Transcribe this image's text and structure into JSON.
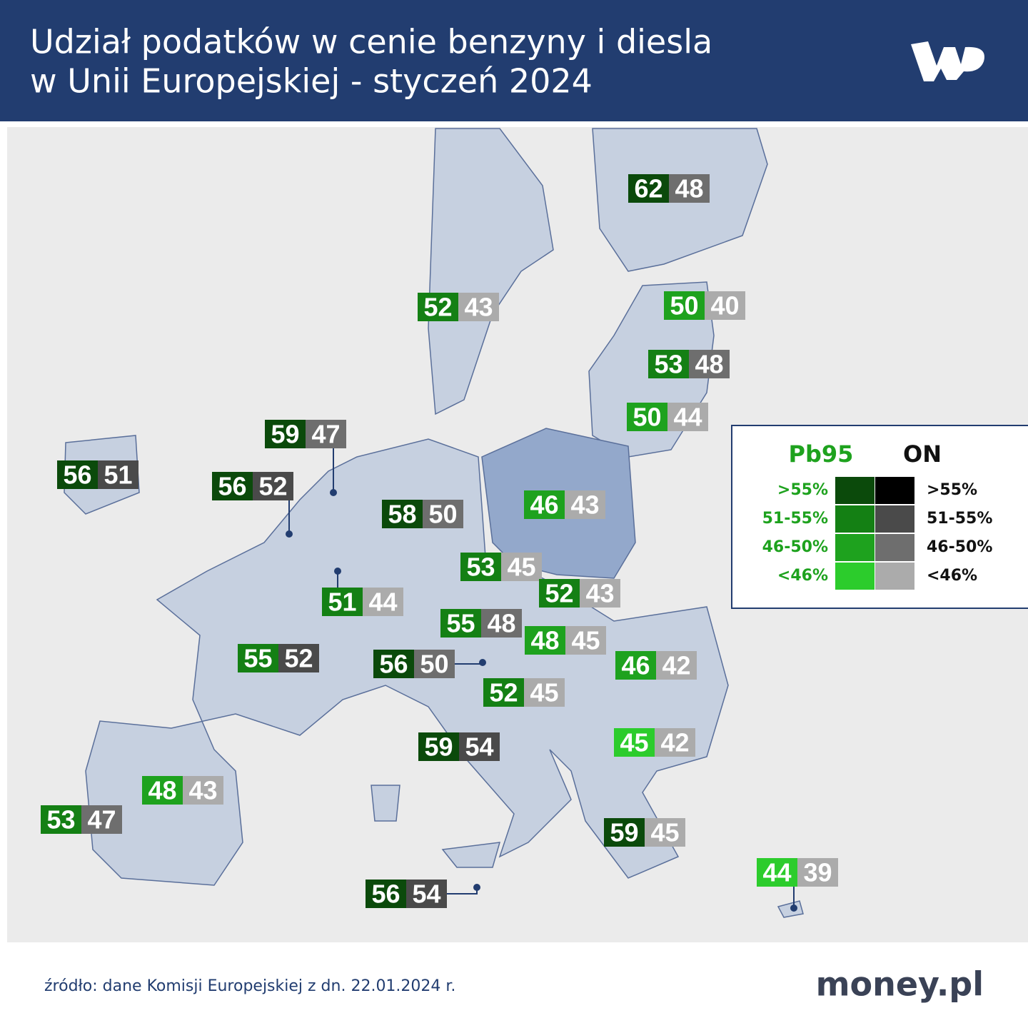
{
  "header": {
    "title_lines": [
      "Udział podatków w cenie benzyny i diesla",
      "w Unii Europejskiej - styczeń 2024"
    ]
  },
  "map": {
    "labels": [
      {
        "pb95": 62,
        "pb95_color": "#0b4a0b",
        "on": 48,
        "on_color": "#6e6e6e"
      },
      {
        "pb95": 52,
        "pb95_color": "#148014",
        "on": 43,
        "on_color": "#ababab"
      },
      {
        "pb95": 50,
        "pb95_color": "#1ea21e",
        "on": 40,
        "on_color": "#ababab"
      },
      {
        "pb95": 53,
        "pb95_color": "#148014",
        "on": 48,
        "on_color": "#6e6e6e"
      },
      {
        "pb95": 50,
        "pb95_color": "#1ea21e",
        "on": 44,
        "on_color": "#ababab"
      },
      {
        "pb95": 59,
        "pb95_color": "#0b4a0b",
        "on": 47,
        "on_color": "#6e6e6e"
      },
      {
        "pb95": 56,
        "pb95_color": "#0b4a0b",
        "on": 51,
        "on_color": "#4a4a4a"
      },
      {
        "pb95": 56,
        "pb95_color": "#0b4a0b",
        "on": 52,
        "on_color": "#4a4a4a"
      },
      {
        "pb95": 58,
        "pb95_color": "#0b4a0b",
        "on": 50,
        "on_color": "#6e6e6e"
      },
      {
        "pb95": 46,
        "pb95_color": "#1ea21e",
        "on": 43,
        "on_color": "#ababab"
      },
      {
        "pb95": 53,
        "pb95_color": "#148014",
        "on": 45,
        "on_color": "#ababab"
      },
      {
        "pb95": 51,
        "pb95_color": "#148014",
        "on": 44,
        "on_color": "#ababab"
      },
      {
        "pb95": 52,
        "pb95_color": "#148014",
        "on": 43,
        "on_color": "#ababab"
      },
      {
        "pb95": 55,
        "pb95_color": "#148014",
        "on": 48,
        "on_color": "#6e6e6e"
      },
      {
        "pb95": 48,
        "pb95_color": "#1ea21e",
        "on": 45,
        "on_color": "#ababab"
      },
      {
        "pb95": 55,
        "pb95_color": "#148014",
        "on": 52,
        "on_color": "#4a4a4a"
      },
      {
        "pb95": 56,
        "pb95_color": "#0b4a0b",
        "on": 50,
        "on_color": "#6e6e6e"
      },
      {
        "pb95": 46,
        "pb95_color": "#1ea21e",
        "on": 42,
        "on_color": "#ababab"
      },
      {
        "pb95": 52,
        "pb95_color": "#148014",
        "on": 45,
        "on_color": "#ababab"
      },
      {
        "pb95": 45,
        "pb95_color": "#2ccc2c",
        "on": 42,
        "on_color": "#ababab"
      },
      {
        "pb95": 59,
        "pb95_color": "#0b4a0b",
        "on": 54,
        "on_color": "#4a4a4a"
      },
      {
        "pb95": 48,
        "pb95_color": "#1ea21e",
        "on": 43,
        "on_color": "#ababab"
      },
      {
        "pb95": 53,
        "pb95_color": "#148014",
        "on": 47,
        "on_color": "#6e6e6e"
      },
      {
        "pb95": 59,
        "pb95_color": "#0b4a0b",
        "on": 45,
        "on_color": "#ababab"
      },
      {
        "pb95": 44,
        "pb95_color": "#2ccc2c",
        "on": 39,
        "on_color": "#ababab"
      },
      {
        "pb95": 56,
        "pb95_color": "#0b4a0b",
        "on": 54,
        "on_color": "#4a4a4a"
      }
    ]
  },
  "legend": {
    "pb95_title": "Pb95",
    "on_title": "ON",
    "rows": [
      {
        "pb95_label": ">55%",
        "pb95_color": "#0b4a0b",
        "on_label": ">55%",
        "on_color": "#000000"
      },
      {
        "pb95_label": "51-55%",
        "pb95_color": "#148014",
        "on_label": "51-55%",
        "on_color": "#4a4a4a"
      },
      {
        "pb95_label": "46-50%",
        "pb95_color": "#1ea21e",
        "on_label": "46-50%",
        "on_color": "#6e6e6e"
      },
      {
        "pb95_label": "<46%",
        "pb95_color": "#2ccc2c",
        "on_label": "<46%",
        "on_color": "#ababab"
      }
    ]
  },
  "footer": {
    "source": "źródło: dane Komisji Europejskiej z dn. 22.01.2024 r.",
    "brand": "money.pl"
  }
}
